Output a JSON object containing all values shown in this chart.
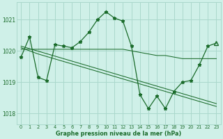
{
  "background_color": "#cff0e8",
  "grid_color": "#aad8cc",
  "line_color": "#1a6b2a",
  "xlabel": "Graphe pression niveau de la mer (hPa)",
  "ylim": [
    1017.65,
    1021.55
  ],
  "xlim": [
    -0.5,
    23.5
  ],
  "yticks": [
    1018,
    1019,
    1020,
    1021
  ],
  "xticks": [
    0,
    1,
    2,
    3,
    4,
    5,
    6,
    7,
    8,
    9,
    10,
    11,
    12,
    13,
    14,
    15,
    16,
    17,
    18,
    19,
    20,
    21,
    22,
    23
  ],
  "hours": [
    0,
    1,
    2,
    3,
    4,
    5,
    6,
    7,
    8,
    9,
    10,
    11,
    12,
    13,
    14,
    15,
    16,
    17,
    18,
    19,
    20,
    21,
    22,
    23
  ],
  "main_line": [
    1019.8,
    1020.45,
    1019.15,
    1019.05,
    1020.2,
    1020.15,
    1020.1,
    1020.3,
    1020.6,
    1021.0,
    1021.25,
    1021.05,
    1020.95,
    1020.15,
    1018.6,
    1018.15,
    1018.55,
    1018.15,
    1018.7,
    1019.0,
    1019.05,
    1019.55,
    1020.15,
    1020.25
  ],
  "flat_line": [
    1020.05,
    1020.05,
    1020.05,
    1020.05,
    1020.05,
    1020.05,
    1020.05,
    1020.05,
    1020.05,
    1020.05,
    1020.05,
    1020.05,
    1020.05,
    1020.0,
    1019.95,
    1019.9,
    1019.85,
    1019.85,
    1019.8,
    1019.75,
    1019.75,
    1019.75,
    1019.75,
    1019.75
  ],
  "decline_line1": [
    1020.1,
    1020.0,
    1019.9,
    1019.82,
    1019.74,
    1019.66,
    1019.58,
    1019.5,
    1019.42,
    1019.34,
    1019.26,
    1019.18,
    1019.1,
    1019.02,
    1018.94,
    1018.86,
    1018.78,
    1018.7,
    1018.62,
    1018.54,
    1018.46,
    1018.38,
    1018.3,
    1018.22
  ],
  "decline_line2": [
    1020.15,
    1020.07,
    1019.99,
    1019.91,
    1019.83,
    1019.75,
    1019.67,
    1019.59,
    1019.51,
    1019.43,
    1019.35,
    1019.27,
    1019.19,
    1019.11,
    1019.03,
    1018.95,
    1018.87,
    1018.79,
    1018.71,
    1018.63,
    1018.55,
    1018.47,
    1018.39,
    1018.31
  ]
}
